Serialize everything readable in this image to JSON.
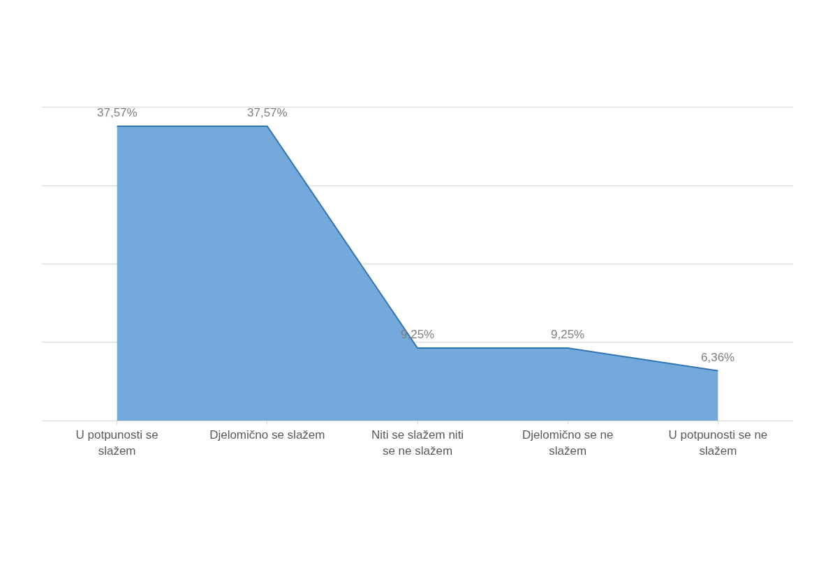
{
  "chart_data": {
    "type": "area",
    "categories": [
      "U potpunosti se slažem",
      "Djelomično se slažem",
      "Niti se slažem niti se ne slažem",
      "Djelomično se ne slažem",
      "U potpunosti se ne slažem"
    ],
    "values": [
      37.57,
      37.57,
      9.25,
      9.25,
      6.36
    ],
    "value_labels": [
      "37,57%",
      "37,57%",
      "9,25%",
      "9,25%",
      "6,36%"
    ],
    "color": "#5b9bd5",
    "grid": "y",
    "tick_labels": "x",
    "marker": "none"
  }
}
